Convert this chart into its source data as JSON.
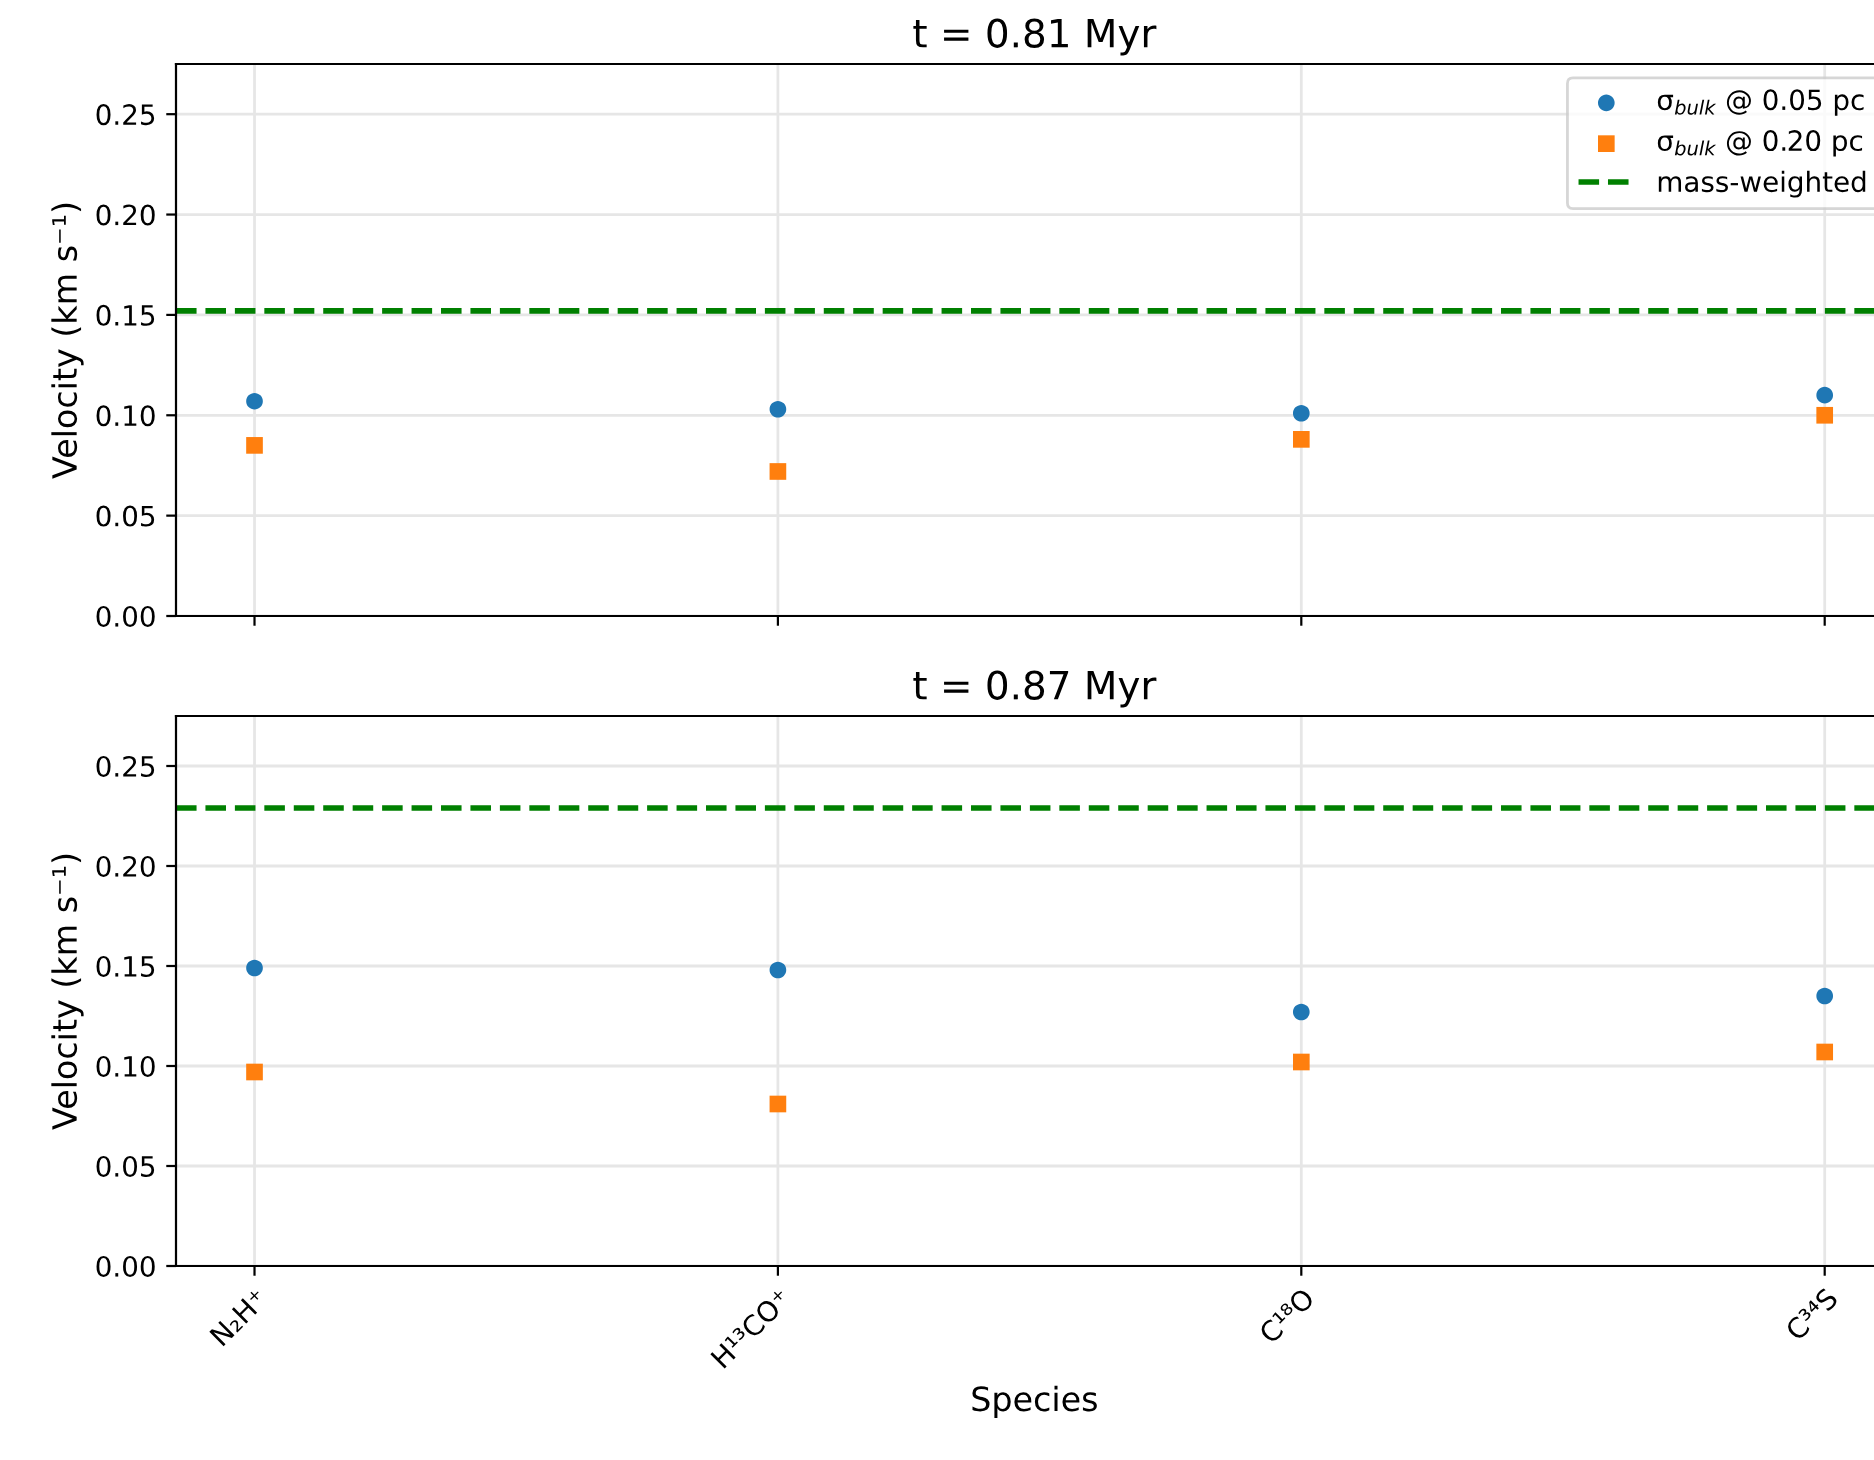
{
  "chart_data": [
    {
      "type": "scatter",
      "title": "t = 0.81 Myr",
      "ylabel": "Velocity (km s⁻¹)",
      "categories": [
        null,
        null,
        null,
        null
      ],
      "series": [
        {
          "name": "σ$_{bulk}$ @ 0.05 pc",
          "color": "#1f77b4",
          "marker": "circle",
          "values": [
            0.107,
            0.103,
            0.101,
            0.11
          ]
        },
        {
          "name": "σ$_{bulk}$ @ 0.20 pc",
          "color": "#ff7f0e",
          "marker": "square",
          "values": [
            0.085,
            0.072,
            0.088,
            0.1
          ]
        }
      ],
      "ref_lines": [
        {
          "axis": "y",
          "value": 0.152,
          "label": "mass-weighted",
          "color": "#008000",
          "line_style": "dashed"
        }
      ],
      "ylim": [
        0,
        0.275
      ],
      "yticks": [
        {
          "value": 0,
          "label": "0.00"
        },
        0.05,
        {
          "value": 0.1,
          "label": "0.10"
        },
        0.15,
        {
          "value": 0.2,
          "label": "0.20"
        },
        0.25
      ],
      "grid": true,
      "legend": "top right",
      "tick_labels": "y"
    },
    {
      "type": "scatter",
      "title": "t = 0.87 Myr",
      "xlabel": "Species",
      "ylabel": "Velocity (km s⁻¹)",
      "categories": [
        "N₂H⁺",
        "H¹³CO⁺",
        "C¹⁸O",
        "C³⁴S"
      ],
      "series": [
        {
          "color": "#1f77b4",
          "marker": "circle",
          "values": [
            0.149,
            0.148,
            0.127,
            0.135
          ]
        },
        {
          "color": "#ff7f0e",
          "marker": "square",
          "values": [
            0.097,
            0.081,
            0.102,
            0.107
          ]
        }
      ],
      "ref_lines": [
        {
          "axis": "y",
          "value": 0.229,
          "color": "#008000",
          "line_style": "dashed"
        }
      ],
      "ylim": [
        0,
        0.275
      ],
      "yticks": [
        {
          "value": 0,
          "label": "0.00"
        },
        0.05,
        {
          "value": 0.1,
          "label": "0.10"
        },
        0.15,
        {
          "value": 0.2,
          "label": "0.20"
        },
        0.25
      ],
      "grid": true
    }
  ]
}
